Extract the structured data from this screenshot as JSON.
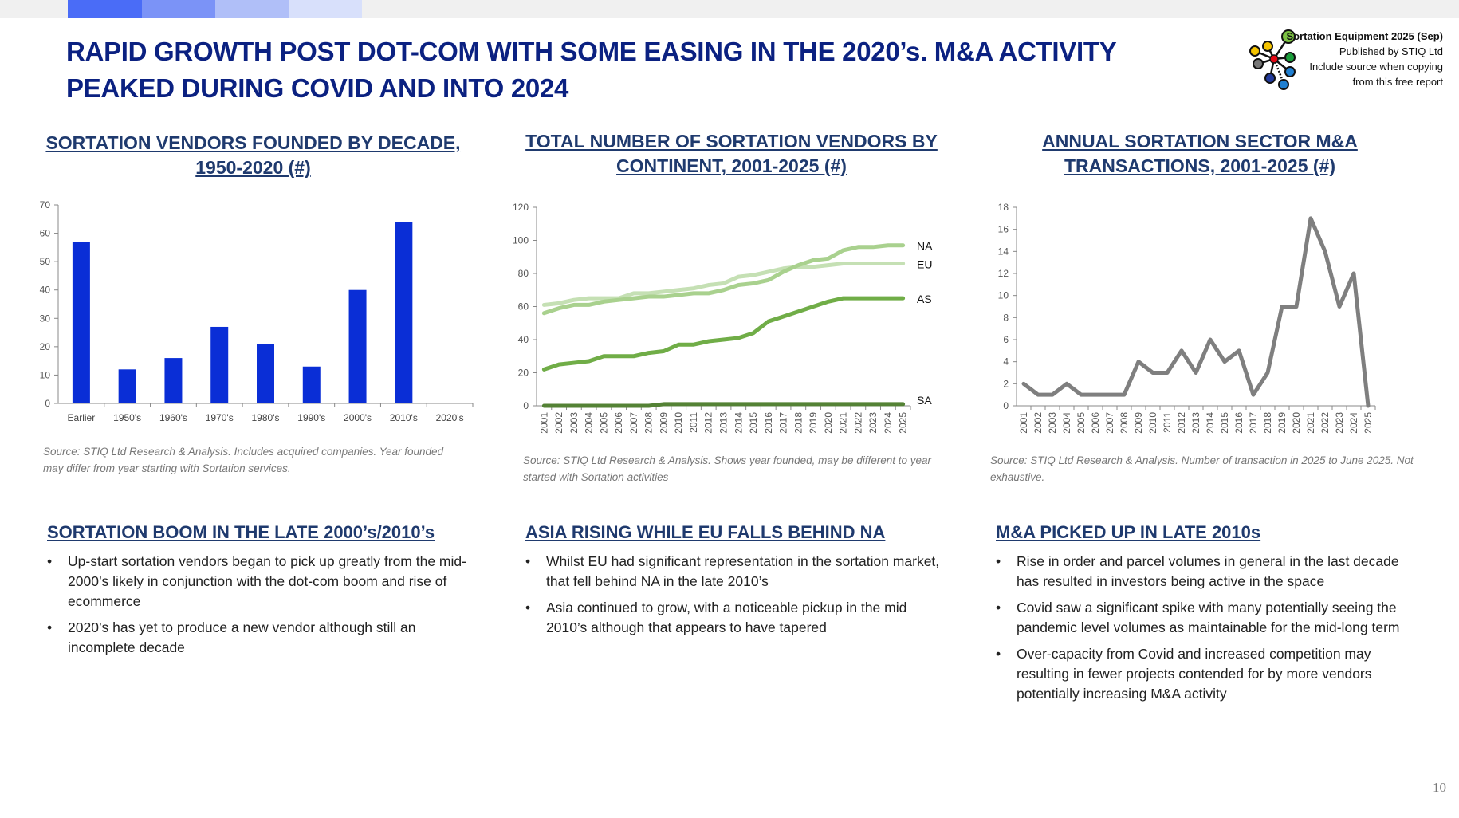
{
  "header": {
    "title": "RAPID GROWTH POST DOT-COM WITH SOME EASING IN THE 2020’s. M&A ACTIVITY PEAKED DURING COVID AND INTO 2024",
    "accent_colors": [
      "#4a6cf7",
      "#7b93f7",
      "#b0bff8",
      "#d8e0fb"
    ]
  },
  "logo": {
    "line1": "Sortation Equipment 2025 (Sep)",
    "line2": "Published by STIQ Ltd",
    "line3": "Include source when copying",
    "line4": "from this free report"
  },
  "charts": [
    {
      "heading": "SORTATION VENDORS FOUNDED BY DECADE, 1950-2020 (#)",
      "source": "Source: STIQ Ltd Research & Analysis. Includes acquired companies. Year founded may differ from year starting with Sortation services."
    },
    {
      "heading": "TOTAL NUMBER OF SORTATION VENDORS BY CONTINENT, 2001-2025 (#)",
      "source": "Source: STIQ Ltd Research & Analysis. Shows year founded, may be different to year started with Sortation activities"
    },
    {
      "heading": "ANNUAL SORTATION SECTOR M&A TRANSACTIONS, 2001-2025 (#)",
      "source": "Source: STIQ Ltd Research & Analysis. Number of transaction in 2025 to June 2025. Not exhaustive."
    }
  ],
  "chart_data": [
    {
      "type": "bar",
      "categories": [
        "Earlier",
        "1950's",
        "1960's",
        "1970's",
        "1980's",
        "1990's",
        "2000's",
        "2010's",
        "2020's"
      ],
      "values": [
        57,
        12,
        16,
        27,
        21,
        13,
        40,
        64,
        0
      ],
      "ylim": [
        0,
        70
      ],
      "yticks": [
        0,
        10,
        20,
        30,
        40,
        50,
        60,
        70
      ],
      "color": "#0a2ed6",
      "grid": false
    },
    {
      "type": "line",
      "x": [
        "2001",
        "2002",
        "2003",
        "2004",
        "2005",
        "2006",
        "2007",
        "2008",
        "2009",
        "2010",
        "2011",
        "2012",
        "2013",
        "2014",
        "2015",
        "2016",
        "2017",
        "2018",
        "2019",
        "2020",
        "2021",
        "2022",
        "2023",
        "2024",
        "2025"
      ],
      "ylim": [
        0,
        120
      ],
      "yticks": [
        0,
        20,
        40,
        60,
        80,
        100,
        120
      ],
      "grid": false,
      "series": [
        {
          "name": "EU",
          "color": "#c5e0b4",
          "values": [
            61,
            62,
            64,
            65,
            65,
            65,
            68,
            68,
            69,
            70,
            71,
            73,
            74,
            78,
            79,
            81,
            83,
            84,
            84,
            85,
            86,
            86,
            86,
            86,
            86
          ]
        },
        {
          "name": "NA",
          "color": "#a9d18e",
          "values": [
            56,
            59,
            61,
            61,
            63,
            64,
            65,
            66,
            66,
            67,
            68,
            68,
            70,
            73,
            74,
            76,
            81,
            85,
            88,
            89,
            94,
            96,
            96,
            97,
            97
          ]
        },
        {
          "name": "AS",
          "color": "#70ad47",
          "values": [
            22,
            25,
            26,
            27,
            30,
            30,
            30,
            32,
            33,
            37,
            37,
            39,
            40,
            41,
            44,
            51,
            54,
            57,
            60,
            63,
            65,
            65,
            65,
            65,
            65
          ]
        },
        {
          "name": "SA",
          "color": "#548235",
          "values": [
            0,
            0,
            0,
            0,
            0,
            0,
            0,
            0,
            1,
            1,
            1,
            1,
            1,
            1,
            1,
            1,
            1,
            1,
            1,
            1,
            1,
            1,
            1,
            1,
            1
          ]
        }
      ]
    },
    {
      "type": "line",
      "x": [
        "2001",
        "2002",
        "2003",
        "2004",
        "2005",
        "2006",
        "2007",
        "2008",
        "2009",
        "2010",
        "2011",
        "2012",
        "2013",
        "2014",
        "2015",
        "2016",
        "2017",
        "2018",
        "2019",
        "2020",
        "2021",
        "2022",
        "2023",
        "2024",
        "2025"
      ],
      "ylim": [
        0,
        18
      ],
      "yticks": [
        0,
        2,
        4,
        6,
        8,
        10,
        12,
        14,
        16,
        18
      ],
      "grid": false,
      "series": [
        {
          "color": "#7f7f7f",
          "values": [
            2,
            1,
            1,
            2,
            1,
            1,
            1,
            1,
            4,
            3,
            3,
            5,
            3,
            6,
            4,
            5,
            1,
            3,
            9,
            9,
            17,
            14,
            9,
            12,
            0
          ]
        }
      ]
    }
  ],
  "sections": [
    {
      "heading": "SORTATION BOOM IN THE LATE 2000’s/2010’s",
      "bullets": [
        "Up-start sortation vendors began to pick up greatly from the mid-2000’s likely in conjunction with the dot-com boom and rise of ecommerce",
        "2020’s has yet to produce a new vendor although still an incomplete decade"
      ]
    },
    {
      "heading": "ASIA RISING WHILE EU FALLS BEHIND NA",
      "bullets": [
        "Whilst EU had significant representation in the sortation market, that fell behind NA in the late 2010’s",
        "Asia continued to grow, with a noticeable pickup in the mid 2010’s although that appears to have tapered"
      ]
    },
    {
      "heading": "M&A PICKED UP IN LATE 2010s",
      "bullets": [
        "Rise in order and parcel volumes in general in the last decade has resulted in investors being active in the space",
        "Covid saw a significant spike with many potentially seeing the pandemic level volumes as maintainable for the mid-long term",
        "Over-capacity from Covid and increased competition may resulting in fewer projects contended for by more vendors potentially increasing M&A activity"
      ]
    }
  ],
  "page_number": "10"
}
